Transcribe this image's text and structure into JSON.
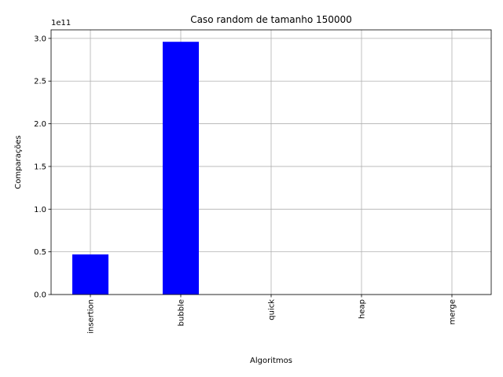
{
  "chart_data": {
    "type": "bar",
    "title": "Caso random de tamanho 150000",
    "xlabel": "Algoritmos",
    "ylabel": "Comparações",
    "categories": [
      "insertion",
      "bubble",
      "quick",
      "heap",
      "merge"
    ],
    "values": [
      47000000000,
      296000000000,
      3000000,
      5000000,
      2500000
    ],
    "ylim": [
      0,
      310000000000
    ],
    "yticks": [
      0,
      50000000000,
      100000000000,
      150000000000,
      200000000000,
      250000000000,
      300000000000
    ],
    "ytick_labels": [
      "0.0",
      "0.5",
      "1.0",
      "1.5",
      "2.0",
      "2.5",
      "3.0"
    ],
    "y_offset_label": "1e11",
    "bar_color": "#0000ff",
    "grid": true,
    "xtick_rotation": "vertical"
  }
}
